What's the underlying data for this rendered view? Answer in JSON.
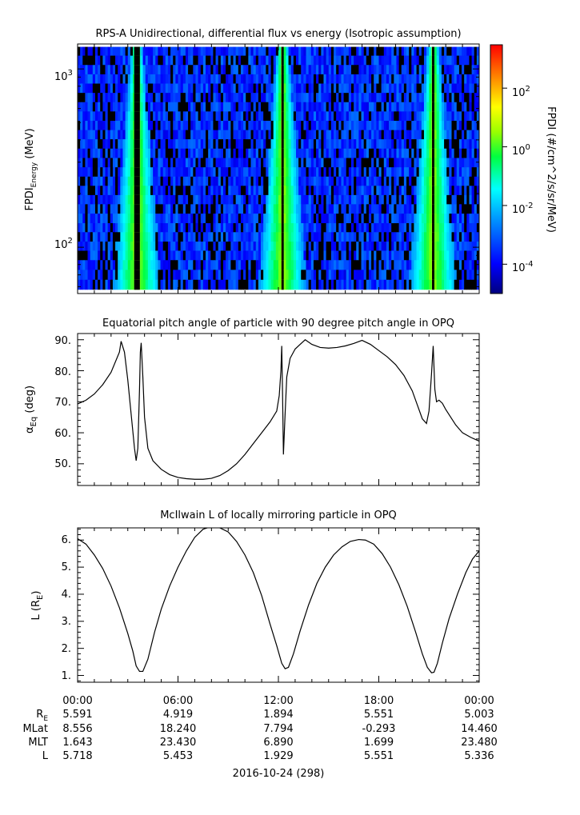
{
  "panel1": {
    "title": "RPS-A Unidirectional, differential flux vs energy (Isotropic assumption)",
    "ylabel_main": "FPDI",
    "ylabel_sub": "Energy",
    "ylabel_unit": " (MeV)",
    "ytick_base": "10",
    "ytick_exps": [
      "3",
      "2"
    ],
    "colorbar_label": "FPDI (#/cm^2/s/sr/MeV)",
    "colorbar_tick_base": "10",
    "colorbar_tick_exps": [
      "2",
      "0",
      "-2",
      "-4"
    ]
  },
  "panel2": {
    "title": "Equatorial pitch angle of particle with 90 degree pitch angle in OPQ",
    "ylabel_main": "α",
    "ylabel_sub": "Eq",
    "ylabel_unit": " (deg)",
    "yticks": [
      "90.",
      "80.",
      "70.",
      "60.",
      "50."
    ]
  },
  "panel3": {
    "title": "McIlwain L of locally mirroring particle in OPQ",
    "ylabel_main": "L (R",
    "ylabel_sub": "E",
    "ylabel_unit": ")",
    "yticks": [
      "6.",
      "5.",
      "4.",
      "3.",
      "2.",
      "1."
    ]
  },
  "xaxis": {
    "time_ticks": [
      "00:00",
      "06:00",
      "12:00",
      "18:00",
      "00:00"
    ],
    "date_label": "2016-10-24 (298)"
  },
  "ephemeris": {
    "rows": [
      {
        "label_main": "R",
        "label_sub": "E",
        "values": [
          "5.591",
          "4.919",
          "1.894",
          "5.551",
          "5.003"
        ]
      },
      {
        "label_main": "MLat",
        "label_sub": "",
        "values": [
          "8.556",
          "18.240",
          "7.794",
          "-0.293",
          "14.460"
        ]
      },
      {
        "label_main": "MLT",
        "label_sub": "",
        "values": [
          "1.643",
          "23.430",
          "6.890",
          "1.699",
          "23.480"
        ]
      },
      {
        "label_main": "L",
        "label_sub": "",
        "values": [
          "5.718",
          "5.453",
          "1.929",
          "5.551",
          "5.336"
        ]
      }
    ]
  },
  "chart_data": [
    {
      "type": "heatmap",
      "title": "RPS-A Unidirectional, differential flux vs energy (Isotropic assumption)",
      "ylabel": "FPDI_Energy (MeV)",
      "yscale": "log",
      "ylim": [
        55,
        1380
      ],
      "xlim_hours": [
        0,
        24
      ],
      "colorbar": {
        "label": "FPDI (#/cm^2/s/sr/MeV)",
        "scale": "log",
        "range": [
          1e-05,
          3000
        ],
        "colormap": "rainbow"
      },
      "energy_bins_MeV": [
        58,
        66,
        75,
        85,
        96,
        108,
        122,
        137,
        155,
        175,
        197,
        222,
        250,
        282,
        318,
        359,
        405,
        456,
        514,
        580,
        654,
        737,
        831,
        937,
        1057,
        1192,
        1330
      ],
      "radiation_belt_crossings_hours": [
        [
          3.3,
          3.8
        ],
        [
          12.1,
          12.4
        ],
        [
          21.1,
          21.4
        ]
      ],
      "peak_flux_log10": 0.0,
      "background_flux_log10": -3.5
    },
    {
      "type": "line",
      "title": "Equatorial pitch angle of particle with 90 degree pitch angle in OPQ",
      "ylabel": "α_Eq (deg)",
      "ylim": [
        43,
        92
      ],
      "xlim_hours": [
        0,
        24
      ],
      "x_hours": [
        0,
        0.5,
        1.0,
        1.5,
        2.0,
        2.5,
        2.6,
        2.8,
        3.0,
        3.2,
        3.4,
        3.5,
        3.6,
        3.7,
        3.75,
        3.8,
        3.9,
        4.0,
        4.2,
        4.5,
        5.0,
        5.5,
        6.0,
        6.5,
        7.0,
        7.5,
        8.0,
        8.5,
        9.0,
        9.5,
        10.0,
        10.5,
        11.0,
        11.5,
        11.9,
        12.05,
        12.15,
        12.2,
        12.25,
        12.3,
        12.4,
        12.5,
        12.7,
        13.0,
        13.3,
        13.6,
        14.0,
        14.5,
        15.0,
        15.5,
        16.0,
        16.5,
        17.0,
        17.5,
        18.0,
        18.5,
        19.0,
        19.5,
        20.0,
        20.3,
        20.6,
        20.85,
        21.0,
        21.15,
        21.25,
        21.35,
        21.45,
        21.6,
        21.8,
        22.0,
        22.3,
        22.6,
        23.0,
        23.5,
        24.0
      ],
      "values": [
        69.3,
        70.5,
        72.5,
        75.5,
        79.5,
        86.0,
        89.5,
        86.0,
        77.0,
        66.0,
        55.0,
        51.0,
        55.0,
        74.0,
        86.0,
        89.0,
        78.0,
        65.0,
        55.0,
        51.0,
        48.2,
        46.5,
        45.6,
        45.2,
        45.0,
        45.0,
        45.3,
        46.2,
        47.8,
        50.0,
        53.0,
        56.5,
        60.0,
        63.5,
        67.0,
        72.0,
        80.0,
        88.0,
        72.0,
        53.0,
        66.0,
        78.0,
        84.0,
        87.0,
        88.5,
        90.0,
        88.5,
        87.5,
        87.3,
        87.5,
        88.0,
        88.8,
        89.8,
        88.5,
        86.5,
        84.5,
        82.0,
        78.5,
        73.5,
        69.0,
        64.5,
        63.0,
        67.0,
        79.0,
        88.0,
        74.0,
        70.0,
        70.5,
        69.5,
        67.5,
        65.0,
        62.5,
        60.0,
        58.5,
        57.3
      ]
    },
    {
      "type": "line",
      "title": "McIlwain L of locally mirroring particle in OPQ",
      "ylabel": "L (R_E)",
      "ylim": [
        0.75,
        6.45
      ],
      "xlim_hours": [
        0,
        24
      ],
      "x_hours": [
        0,
        0.5,
        1.0,
        1.5,
        2.0,
        2.5,
        3.0,
        3.3,
        3.5,
        3.7,
        3.9,
        4.2,
        4.6,
        5.0,
        5.5,
        6.0,
        6.5,
        7.0,
        7.5,
        8.0,
        8.5,
        9.0,
        9.5,
        10.0,
        10.5,
        11.0,
        11.5,
        11.9,
        12.2,
        12.4,
        12.6,
        12.9,
        13.3,
        13.8,
        14.3,
        14.8,
        15.3,
        15.8,
        16.3,
        16.8,
        17.2,
        17.7,
        18.2,
        18.7,
        19.2,
        19.7,
        20.2,
        20.6,
        20.9,
        21.15,
        21.3,
        21.5,
        21.8,
        22.2,
        22.7,
        23.2,
        23.6,
        24.0
      ],
      "values": [
        6.05,
        5.85,
        5.45,
        4.95,
        4.3,
        3.5,
        2.55,
        1.9,
        1.35,
        1.15,
        1.15,
        1.6,
        2.6,
        3.45,
        4.3,
        5.0,
        5.6,
        6.1,
        6.4,
        6.5,
        6.45,
        6.3,
        5.95,
        5.45,
        4.8,
        3.95,
        2.9,
        2.1,
        1.45,
        1.25,
        1.3,
        1.8,
        2.65,
        3.6,
        4.4,
        5.0,
        5.45,
        5.75,
        5.95,
        6.02,
        6.0,
        5.85,
        5.5,
        5.0,
        4.35,
        3.55,
        2.6,
        1.8,
        1.3,
        1.1,
        1.12,
        1.45,
        2.2,
        3.1,
        4.0,
        4.8,
        5.3,
        5.6
      ]
    }
  ]
}
